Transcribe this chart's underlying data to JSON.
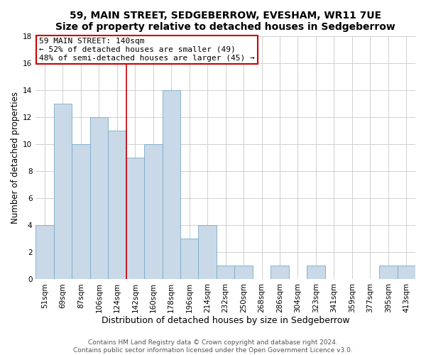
{
  "title": "59, MAIN STREET, SEDGEBERROW, EVESHAM, WR11 7UE",
  "subtitle": "Size of property relative to detached houses in Sedgeberrow",
  "xlabel": "Distribution of detached houses by size in Sedgeberrow",
  "ylabel": "Number of detached properties",
  "categories": [
    "51sqm",
    "69sqm",
    "87sqm",
    "106sqm",
    "124sqm",
    "142sqm",
    "160sqm",
    "178sqm",
    "196sqm",
    "214sqm",
    "232sqm",
    "250sqm",
    "268sqm",
    "286sqm",
    "304sqm",
    "323sqm",
    "341sqm",
    "359sqm",
    "377sqm",
    "395sqm",
    "413sqm"
  ],
  "values": [
    4,
    13,
    10,
    12,
    11,
    9,
    10,
    14,
    3,
    4,
    1,
    1,
    0,
    1,
    0,
    1,
    0,
    0,
    0,
    1,
    1
  ],
  "bar_color": "#c9d9e8",
  "bar_edge_color": "#7aaac8",
  "bar_edge_width": 0.6,
  "annotation_text_line1": "59 MAIN STREET: 140sqm",
  "annotation_text_line2": "← 52% of detached houses are smaller (49)",
  "annotation_text_line3": "48% of semi-detached houses are larger (45) →",
  "annotation_box_color": "#ffffff",
  "annotation_box_edge_color": "#cc0000",
  "vline_color": "#cc0000",
  "ylim": [
    0,
    18
  ],
  "yticks": [
    0,
    2,
    4,
    6,
    8,
    10,
    12,
    14,
    16,
    18
  ],
  "grid_color": "#d0d0d0",
  "background_color": "#ffffff",
  "footer_line1": "Contains HM Land Registry data © Crown copyright and database right 2024.",
  "footer_line2": "Contains public sector information licensed under the Open Government Licence v3.0.",
  "title_fontsize": 10,
  "xlabel_fontsize": 9,
  "ylabel_fontsize": 8.5,
  "tick_fontsize": 7.5,
  "annotation_fontsize": 8,
  "footer_fontsize": 6.5
}
